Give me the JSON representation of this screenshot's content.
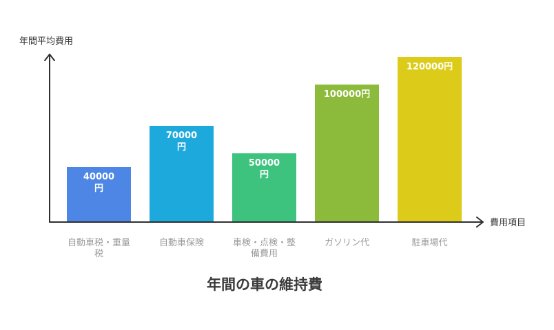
{
  "chart_data": {
    "type": "bar",
    "title": "年間の車の維持費",
    "ylabel": "年間平均費用",
    "xlabel": "費用項目",
    "ylim": [
      0,
      140000
    ],
    "grid": false,
    "categories": [
      [
        "自動車税・重量",
        "税"
      ],
      [
        "自動車保険"
      ],
      [
        "車検・点検・整",
        "備費用"
      ],
      [
        "ガソリン代"
      ],
      [
        "駐車場代"
      ]
    ],
    "values": [
      40000,
      70000,
      50000,
      100000,
      120000
    ],
    "data_labels": [
      [
        "40000",
        "円"
      ],
      [
        "70000",
        "円"
      ],
      [
        "50000",
        "円"
      ],
      [
        "100000円"
      ],
      [
        "120000円"
      ]
    ],
    "colors": [
      "#4d86e5",
      "#1ea9dd",
      "#3ec37e",
      "#8cba3a",
      "#dccb18"
    ]
  }
}
